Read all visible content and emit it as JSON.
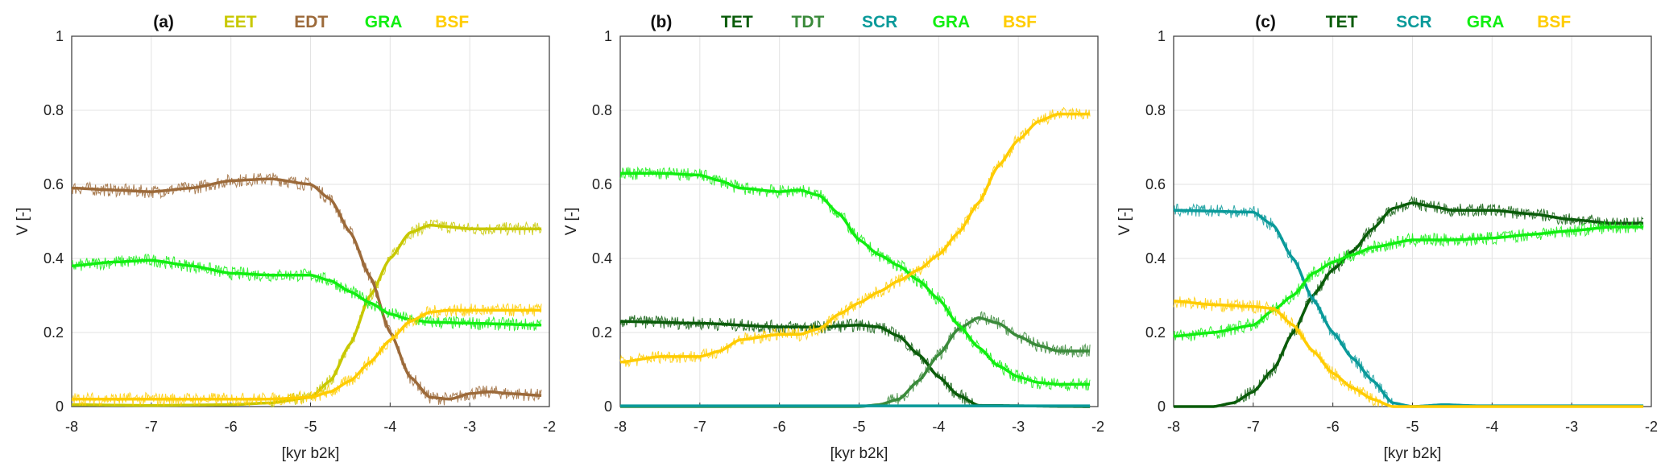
{
  "chart_data": [
    {
      "type": "line",
      "panel_label": "(a)",
      "xlabel": "[kyr b2k]",
      "ylabel": "V [-]",
      "xlim": [
        -8,
        -2
      ],
      "ylim": [
        0,
        1
      ],
      "xticks": [
        "-8",
        "-7",
        "-6",
        "-5",
        "-4",
        "-3",
        "-2"
      ],
      "yticks": [
        "0",
        "0.2",
        "0.4",
        "0.6",
        "0.8",
        "1"
      ],
      "grid": true,
      "legend_placement": "top-center",
      "series": [
        {
          "name": "EET",
          "color": "#c8c800",
          "x": [
            -8,
            -7,
            -6,
            -5.5,
            -5,
            -4.75,
            -4.5,
            -4.25,
            -4,
            -3.75,
            -3.5,
            -3.25,
            -3,
            -2.5,
            -2.1
          ],
          "values": [
            0.005,
            0.003,
            0.005,
            0.01,
            0.025,
            0.07,
            0.17,
            0.3,
            0.4,
            0.47,
            0.49,
            0.485,
            0.48,
            0.48,
            0.48
          ]
        },
        {
          "name": "EDT",
          "color": "#9c6a3a",
          "x": [
            -8,
            -7.5,
            -7,
            -6.5,
            -6,
            -5.5,
            -5,
            -4.75,
            -4.5,
            -4.25,
            -4,
            -3.75,
            -3.5,
            -3.25,
            -3,
            -2.75,
            -2.5,
            -2.1
          ],
          "values": [
            0.59,
            0.585,
            0.58,
            0.59,
            0.61,
            0.615,
            0.6,
            0.56,
            0.47,
            0.35,
            0.2,
            0.08,
            0.025,
            0.02,
            0.035,
            0.04,
            0.035,
            0.03
          ]
        },
        {
          "name": "GRA",
          "color": "#11ee11",
          "x": [
            -8,
            -7.5,
            -7,
            -6.5,
            -6,
            -5.5,
            -5,
            -4.75,
            -4.5,
            -4.25,
            -4,
            -3.75,
            -3.5,
            -3,
            -2.1
          ],
          "values": [
            0.38,
            0.39,
            0.395,
            0.38,
            0.36,
            0.355,
            0.355,
            0.34,
            0.31,
            0.28,
            0.25,
            0.235,
            0.228,
            0.225,
            0.22
          ]
        },
        {
          "name": "BSF",
          "color": "#ffcc00",
          "x": [
            -8,
            -6,
            -5.5,
            -5,
            -4.75,
            -4.5,
            -4.25,
            -4,
            -3.75,
            -3.5,
            -3.25,
            -3,
            -2.1
          ],
          "values": [
            0.02,
            0.02,
            0.02,
            0.025,
            0.04,
            0.07,
            0.12,
            0.18,
            0.23,
            0.255,
            0.26,
            0.26,
            0.26
          ]
        }
      ]
    },
    {
      "type": "line",
      "panel_label": "(b)",
      "xlabel": "[kyr b2k]",
      "ylabel": "V [-]",
      "xlim": [
        -8,
        -2
      ],
      "ylim": [
        0,
        1
      ],
      "xticks": [
        "-8",
        "-7",
        "-6",
        "-5",
        "-4",
        "-3",
        "-2"
      ],
      "yticks": [
        "0",
        "0.2",
        "0.4",
        "0.6",
        "0.8",
        "1"
      ],
      "grid": true,
      "legend_placement": "top-center",
      "series": [
        {
          "name": "TET",
          "color": "#0a5c0a",
          "x": [
            -8,
            -7,
            -6,
            -5.5,
            -5,
            -4.75,
            -4.5,
            -4.25,
            -4,
            -3.75,
            -3.5,
            -2.1
          ],
          "values": [
            0.23,
            0.225,
            0.215,
            0.215,
            0.22,
            0.215,
            0.19,
            0.14,
            0.08,
            0.03,
            0.003,
            0
          ]
        },
        {
          "name": "TDT",
          "color": "#3a8a3a",
          "x": [
            -8,
            -5,
            -4.75,
            -4.5,
            -4.25,
            -4,
            -3.75,
            -3.5,
            -3.25,
            -3,
            -2.75,
            -2.5,
            -2.1
          ],
          "values": [
            0,
            0,
            0.005,
            0.02,
            0.07,
            0.14,
            0.21,
            0.24,
            0.225,
            0.19,
            0.165,
            0.15,
            0.15
          ]
        },
        {
          "name": "SCR",
          "color": "#0a9a9a",
          "x": [
            -8,
            -2.1
          ],
          "values": [
            0.002,
            0.002
          ]
        },
        {
          "name": "GRA",
          "color": "#11ee11",
          "x": [
            -8,
            -7.5,
            -7,
            -6.75,
            -6.5,
            -6,
            -5.75,
            -5.5,
            -5.25,
            -5,
            -4.75,
            -4.5,
            -4.25,
            -4,
            -3.75,
            -3.5,
            -3.25,
            -3,
            -2.75,
            -2.5,
            -2.1
          ],
          "values": [
            0.63,
            0.63,
            0.625,
            0.61,
            0.59,
            0.58,
            0.585,
            0.57,
            0.52,
            0.45,
            0.41,
            0.38,
            0.34,
            0.29,
            0.22,
            0.16,
            0.11,
            0.08,
            0.065,
            0.06,
            0.06
          ]
        },
        {
          "name": "BSF",
          "color": "#ffcc00",
          "x": [
            -8,
            -7.5,
            -7,
            -6.75,
            -6.5,
            -6,
            -5.75,
            -5.5,
            -5.25,
            -5,
            -4.75,
            -4.5,
            -4.25,
            -4,
            -3.75,
            -3.5,
            -3.25,
            -3,
            -2.75,
            -2.5,
            -2.1
          ],
          "values": [
            0.12,
            0.135,
            0.135,
            0.15,
            0.18,
            0.195,
            0.195,
            0.21,
            0.25,
            0.28,
            0.31,
            0.34,
            0.37,
            0.41,
            0.47,
            0.55,
            0.65,
            0.72,
            0.77,
            0.79,
            0.79
          ]
        }
      ]
    },
    {
      "type": "line",
      "panel_label": "(c)",
      "xlabel": "[kyr b2k]",
      "ylabel": "V [-]",
      "xlim": [
        -8,
        -2
      ],
      "ylim": [
        0,
        1
      ],
      "xticks": [
        "-8",
        "-7",
        "-6",
        "-5",
        "-4",
        "-3",
        "-2"
      ],
      "yticks": [
        "0",
        "0.2",
        "0.4",
        "0.6",
        "0.8",
        "1"
      ],
      "grid": true,
      "legend_placement": "top-center",
      "series": [
        {
          "name": "TET",
          "color": "#0a5c0a",
          "x": [
            -8,
            -7.5,
            -7.25,
            -7,
            -6.75,
            -6.5,
            -6.25,
            -6,
            -5.75,
            -5.5,
            -5.25,
            -5,
            -4.75,
            -4.5,
            -4,
            -3.5,
            -3,
            -2.5,
            -2.1
          ],
          "values": [
            0,
            0,
            0.01,
            0.04,
            0.1,
            0.2,
            0.3,
            0.37,
            0.42,
            0.48,
            0.535,
            0.55,
            0.54,
            0.53,
            0.53,
            0.52,
            0.505,
            0.495,
            0.495
          ]
        },
        {
          "name": "SCR",
          "color": "#0a9a9a",
          "x": [
            -8,
            -7,
            -6.75,
            -6.5,
            -6.25,
            -6,
            -5.75,
            -5.5,
            -5.25,
            -5,
            -4.6,
            -4.2,
            -2.1
          ],
          "values": [
            0.53,
            0.525,
            0.49,
            0.4,
            0.29,
            0.2,
            0.13,
            0.07,
            0.01,
            0,
            0.005,
            0.002,
            0.002
          ]
        },
        {
          "name": "GRA",
          "color": "#11ee11",
          "x": [
            -8,
            -7.5,
            -7,
            -6.75,
            -6.5,
            -6.25,
            -6,
            -5.75,
            -5.5,
            -5,
            -4.5,
            -4,
            -3.5,
            -3,
            -2.5,
            -2.1
          ],
          "values": [
            0.19,
            0.2,
            0.22,
            0.26,
            0.3,
            0.36,
            0.39,
            0.41,
            0.43,
            0.45,
            0.45,
            0.455,
            0.465,
            0.475,
            0.485,
            0.485
          ]
        },
        {
          "name": "BSF",
          "color": "#ffcc00",
          "x": [
            -8,
            -7.5,
            -7,
            -6.75,
            -6.5,
            -6.25,
            -6,
            -5.75,
            -5.5,
            -5.25,
            -2.1
          ],
          "values": [
            0.285,
            0.275,
            0.27,
            0.265,
            0.22,
            0.15,
            0.09,
            0.05,
            0.02,
            0,
            0
          ]
        }
      ]
    }
  ]
}
